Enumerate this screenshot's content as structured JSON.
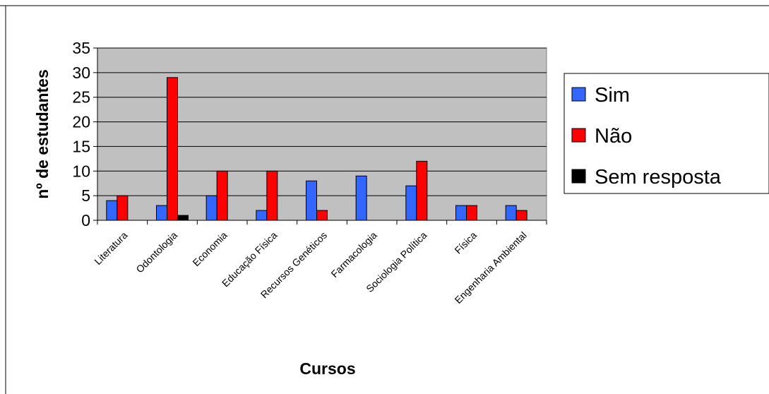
{
  "chart_data": {
    "type": "bar",
    "title": "",
    "xlabel": "Cursos",
    "ylabel": "nº de estudantes",
    "ylim": [
      0,
      35
    ],
    "yticks": [
      0,
      5,
      10,
      15,
      20,
      25,
      30,
      35
    ],
    "grid": "horizontal",
    "legend_position": "right",
    "plot_background": "#c0c0c0",
    "categories": [
      "Literatura",
      "Odontologia",
      "Economia",
      "Educação Física",
      "Recursos Genéticos",
      "Farmacologia",
      "Sociologia Política",
      "Física",
      "Engenharia Ambiental"
    ],
    "series": [
      {
        "name": "Sim",
        "color": "#3366ff",
        "values": [
          4,
          3,
          5,
          2,
          8,
          9,
          7,
          3,
          3
        ]
      },
      {
        "name": "Não",
        "color": "#ff0000",
        "values": [
          5,
          29,
          10,
          10,
          2,
          0,
          12,
          3,
          2
        ]
      },
      {
        "name": "Sem resposta",
        "color": "#000000",
        "values": [
          0,
          1,
          0,
          0,
          0,
          0,
          0,
          0,
          0
        ]
      }
    ]
  }
}
